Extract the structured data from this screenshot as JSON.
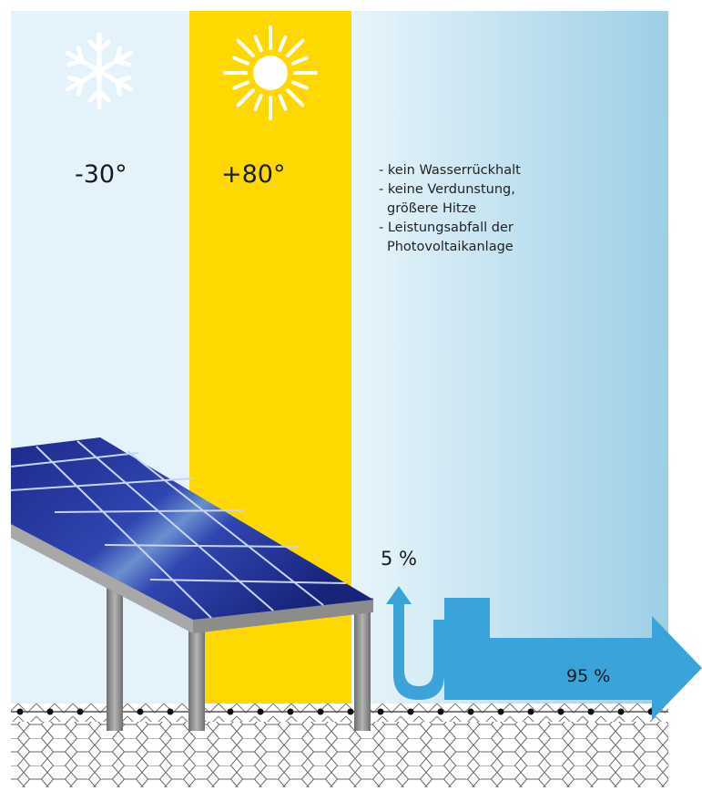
{
  "zones": {
    "cold": {
      "temperature": "-30°",
      "icon": "snowflake-icon"
    },
    "hot": {
      "temperature": "+80°",
      "icon": "sun-icon"
    }
  },
  "notes": [
    "- kein Wasserrückhalt",
    "- keine  Verdunstung,",
    "  größere Hitze",
    "- Leistungsabfall der",
    "  Photovoltaikanlage"
  ],
  "flows": {
    "small": {
      "label": "5 %",
      "value": 5
    },
    "large": {
      "label": "95 %",
      "value": 95
    }
  },
  "colors": {
    "cold_zone": "#e4f3fb",
    "hot_zone": "#ffd800",
    "gradient_start": "#e8f5fb",
    "gradient_end": "#9dcfe6",
    "flow_arrow": "#3aa3d9",
    "panel": "#1d2a8c",
    "frame": "#8c8c8c"
  }
}
